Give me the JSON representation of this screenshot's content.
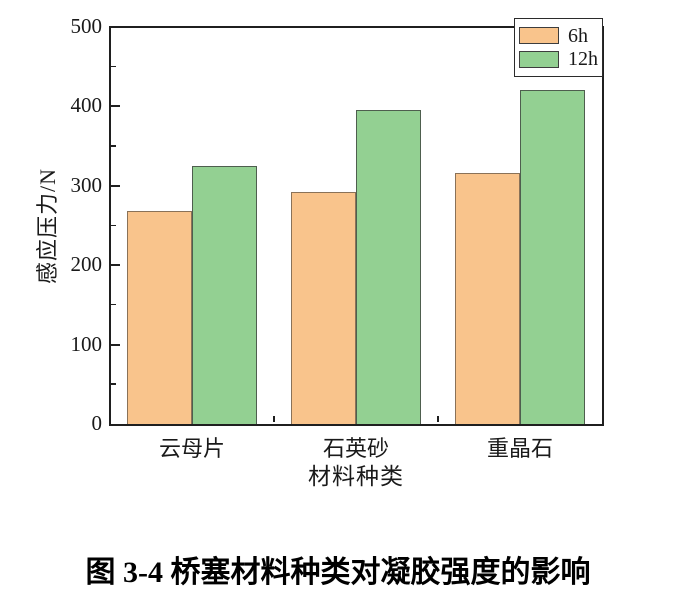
{
  "figure": {
    "caption": "图 3-4 桥塞材料种类对凝胶强度的影响"
  },
  "chart_data": {
    "type": "bar",
    "title": "",
    "xlabel": "材料种类",
    "ylabel": "感应压力/N",
    "categories": [
      "云母片",
      "石英砂",
      "重晶石"
    ],
    "series": [
      {
        "name": "6h",
        "fill": "#F9C48C",
        "edge": "#8A7258",
        "values": [
          268,
          292,
          316
        ]
      },
      {
        "name": "12h",
        "fill": "#93D092",
        "edge": "#4E5E4E",
        "values": [
          325,
          396,
          421
        ]
      }
    ],
    "ylim": [
      0,
      500
    ],
    "ytick_major": 100,
    "ytick_minor": 50,
    "grid": false,
    "legend_position": "top-right",
    "frame": "full-box",
    "axis_color": "#1f1f1f"
  }
}
